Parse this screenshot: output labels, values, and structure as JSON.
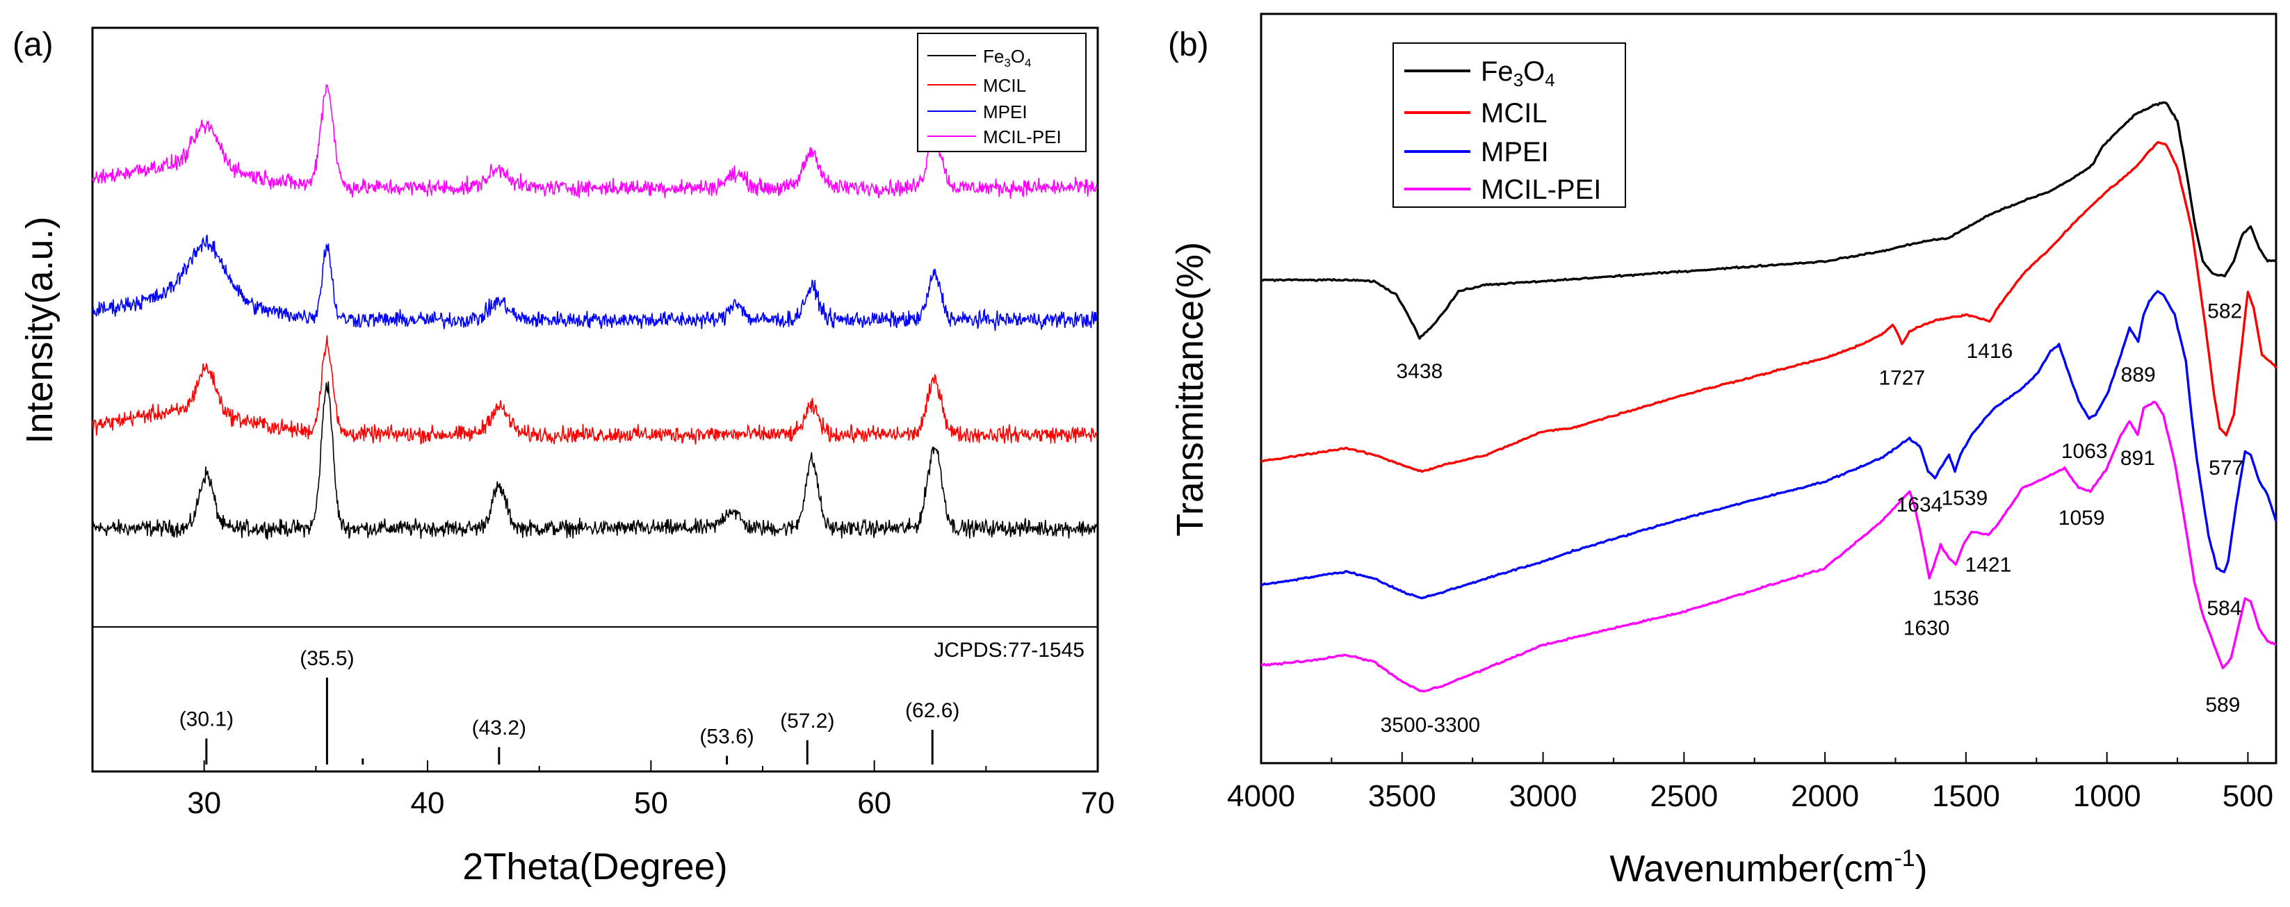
{
  "chart_data": [
    {
      "type": "line",
      "panel_label": "(a)",
      "xlabel": "2Theta(Degree)",
      "ylabel": "Intensity(a.u.)",
      "xlim": [
        25,
        70
      ],
      "xticks": [
        30,
        40,
        50,
        60,
        70
      ],
      "legend": {
        "position": "top-right",
        "entries": [
          {
            "text": "Fe",
            "sub": "3",
            "text2": "O",
            "sub2": "4",
            "color": "#000000"
          },
          {
            "text": "MCIL",
            "color": "#ff0000"
          },
          {
            "text": "MPEI",
            "color": "#0000ff"
          },
          {
            "text": "MCIL-PEI",
            "color": "#ff00ff"
          }
        ]
      },
      "series": [
        {
          "name": "Fe3O4",
          "color": "#000000",
          "baseline": 0.0,
          "peaks": [
            [
              30.1,
              0.6,
              0.45
            ],
            [
              35.5,
              1.6,
              0.35
            ],
            [
              43.2,
              0.45,
              0.45
            ],
            [
              53.6,
              0.2,
              0.5
            ],
            [
              57.2,
              0.75,
              0.4
            ],
            [
              62.7,
              0.9,
              0.45
            ]
          ]
        },
        {
          "name": "MCIL",
          "color": "#ff0000",
          "baseline": 1.5,
          "peaks": [
            [
              30.1,
              0.5,
              0.6
            ],
            [
              35.5,
              1.0,
              0.35
            ],
            [
              43.2,
              0.3,
              0.6
            ],
            [
              57.2,
              0.3,
              0.45
            ],
            [
              62.7,
              0.6,
              0.45
            ]
          ]
        },
        {
          "name": "MPEI",
          "color": "#0000ff",
          "baseline": 3.4,
          "peaks": [
            [
              30.1,
              0.6,
              1.2
            ],
            [
              35.5,
              0.8,
              0.3
            ],
            [
              43.2,
              0.2,
              0.6
            ],
            [
              53.8,
              0.2,
              0.4
            ],
            [
              57.2,
              0.35,
              0.45
            ],
            [
              62.7,
              0.5,
              0.4
            ]
          ]
        },
        {
          "name": "MCIL-PEI",
          "color": "#ff00ff",
          "baseline": 5.3,
          "peaks": [
            [
              30.1,
              0.45,
              0.8
            ],
            [
              35.5,
              1.1,
              0.4
            ],
            [
              43.2,
              0.2,
              0.7
            ],
            [
              53.8,
              0.15,
              0.6
            ],
            [
              57.2,
              0.4,
              0.5
            ],
            [
              62.7,
              0.55,
              0.45
            ]
          ]
        }
      ],
      "reference": {
        "label": "JCPDS:77-1545",
        "lines": [
          {
            "x": 30.1,
            "h": 0.3,
            "label": "(30.1)"
          },
          {
            "x": 35.5,
            "h": 1.0,
            "label": "(35.5)"
          },
          {
            "x": 37.1,
            "h": 0.07,
            "label": ""
          },
          {
            "x": 43.2,
            "h": 0.2,
            "label": "(43.2)"
          },
          {
            "x": 53.4,
            "h": 0.1,
            "label": "(53.6)"
          },
          {
            "x": 57.0,
            "h": 0.28,
            "label": "(57.2)"
          },
          {
            "x": 62.6,
            "h": 0.4,
            "label": "(62.6)"
          }
        ]
      }
    },
    {
      "type": "line",
      "panel_label": "(b)",
      "xlabel": "Wavenumber(cm",
      "xlabel_sup": "-1",
      "xlabel_end": ")",
      "ylabel": "Transmittance(%)",
      "xlim": [
        4000,
        400
      ],
      "ylim": [
        0,
        100
      ],
      "xticks": [
        4000,
        3500,
        3000,
        2500,
        2000,
        1500,
        1000,
        500
      ],
      "legend": {
        "position": "top-left",
        "entries": [
          {
            "text": "Fe",
            "sub": "3",
            "text2": "O",
            "sub2": "4",
            "color": "#000000"
          },
          {
            "text": "MCIL",
            "color": "#ff0000"
          },
          {
            "text": "MPEI",
            "color": "#0000ff"
          },
          {
            "text": "MCIL-PEI",
            "color": "#ff00ff"
          }
        ]
      },
      "series": [
        {
          "name": "Fe3O4",
          "color": "#000000",
          "points": [
            [
              4000,
              67.2
            ],
            [
              3700,
              67.2
            ],
            [
              3600,
              67
            ],
            [
              3520,
              65
            ],
            [
              3460,
              60.5
            ],
            [
              3438,
              58.5
            ],
            [
              3400,
              60
            ],
            [
              3350,
              62.5
            ],
            [
              3300,
              65.5
            ],
            [
              3200,
              66.5
            ],
            [
              3000,
              67
            ],
            [
              2500,
              68.5
            ],
            [
              2000,
              70
            ],
            [
              1800,
              71.5
            ],
            [
              1700,
              72.5
            ],
            [
              1650,
              73
            ],
            [
              1560,
              73.5
            ],
            [
              1500,
              75
            ],
            [
              1416,
              77
            ],
            [
              1300,
              79
            ],
            [
              1200,
              80.5
            ],
            [
              1100,
              83
            ],
            [
              1050,
              84.5
            ],
            [
              1020,
              87
            ],
            [
              950,
              90
            ],
            [
              900,
              92
            ],
            [
              830,
              93.5
            ],
            [
              790,
              93.8
            ],
            [
              750,
              91
            ],
            [
              720,
              84
            ],
            [
              690,
              76
            ],
            [
              660,
              70
            ],
            [
              620,
              68
            ],
            [
              582,
              67.8
            ],
            [
              550,
              70
            ],
            [
              520,
              74
            ],
            [
              490,
              75.2
            ],
            [
              460,
              72
            ],
            [
              430,
              70
            ],
            [
              400,
              70.2
            ]
          ]
        },
        {
          "name": "MCIL",
          "color": "#ff0000",
          "points": [
            [
              4000,
              40
            ],
            [
              3850,
              41
            ],
            [
              3700,
              42
            ],
            [
              3600,
              41
            ],
            [
              3500,
              39.5
            ],
            [
              3430,
              38.5
            ],
            [
              3350,
              39.5
            ],
            [
              3200,
              41
            ],
            [
              3000,
              44.5
            ],
            [
              2900,
              45
            ],
            [
              2500,
              50
            ],
            [
              2000,
              55.5
            ],
            [
              1900,
              57
            ],
            [
              1800,
              59
            ],
            [
              1760,
              60.5
            ],
            [
              1740,
              59
            ],
            [
              1727,
              57.5
            ],
            [
              1700,
              59.5
            ],
            [
              1650,
              60.5
            ],
            [
              1600,
              61.2
            ],
            [
              1500,
              62
            ],
            [
              1450,
              61.5
            ],
            [
              1416,
              61
            ],
            [
              1380,
              63.5
            ],
            [
              1300,
              68
            ],
            [
              1200,
              72
            ],
            [
              1100,
              76.5
            ],
            [
              1000,
              80.5
            ],
            [
              900,
              84
            ],
            [
              850,
              86.5
            ],
            [
              820,
              87.8
            ],
            [
              790,
              87.5
            ],
            [
              750,
              84
            ],
            [
              700,
              75
            ],
            [
              650,
              60
            ],
            [
              620,
              50
            ],
            [
              600,
              45
            ],
            [
              577,
              44
            ],
            [
              550,
              47
            ],
            [
              520,
              58
            ],
            [
              500,
              65.5
            ],
            [
              480,
              63
            ],
            [
              450,
              56
            ],
            [
              420,
              55
            ],
            [
              400,
              54
            ]
          ]
        },
        {
          "name": "MPEI",
          "color": "#0000ff",
          "points": [
            [
              4000,
              21.5
            ],
            [
              3850,
              22.5
            ],
            [
              3700,
              23.5
            ],
            [
              3600,
              22.5
            ],
            [
              3500,
              20.5
            ],
            [
              3430,
              19.5
            ],
            [
              3350,
              20.5
            ],
            [
              3200,
              22.5
            ],
            [
              3000,
              25
            ],
            [
              2900,
              26.5
            ],
            [
              2500,
              31.5
            ],
            [
              2000,
              37
            ],
            [
              1800,
              40.5
            ],
            [
              1700,
              43.5
            ],
            [
              1660,
              42
            ],
            [
              1634,
              38.5
            ],
            [
              1610,
              37.5
            ],
            [
              1590,
              39
            ],
            [
              1560,
              41
            ],
            [
              1539,
              38.5
            ],
            [
              1520,
              41
            ],
            [
              1480,
              44
            ],
            [
              1400,
              48
            ],
            [
              1300,
              51
            ],
            [
              1250,
              53
            ],
            [
              1200,
              56.5
            ],
            [
              1170,
              57.5
            ],
            [
              1150,
              55
            ],
            [
              1100,
              49
            ],
            [
              1063,
              46.5
            ],
            [
              1040,
              47
            ],
            [
              1000,
              50
            ],
            [
              950,
              56
            ],
            [
              920,
              60
            ],
            [
              889,
              58
            ],
            [
              870,
              62
            ],
            [
              850,
              64
            ],
            [
              820,
              65.5
            ],
            [
              800,
              65
            ],
            [
              760,
              62
            ],
            [
              720,
              55
            ],
            [
              700,
              47
            ],
            [
              680,
              40
            ],
            [
              640,
              29
            ],
            [
              610,
              24
            ],
            [
              584,
              23.5
            ],
            [
              570,
              25
            ],
            [
              540,
              34
            ],
            [
              510,
              41.5
            ],
            [
              490,
              41
            ],
            [
              460,
              37
            ],
            [
              430,
              35
            ],
            [
              400,
              31
            ]
          ]
        },
        {
          "name": "MCIL-PEI",
          "color": "#ff00ff",
          "points": [
            [
              4000,
              9.5
            ],
            [
              3850,
              10
            ],
            [
              3700,
              11
            ],
            [
              3600,
              10
            ],
            [
              3500,
              7
            ],
            [
              3430,
              5.5
            ],
            [
              3350,
              6.5
            ],
            [
              3200,
              9
            ],
            [
              3000,
              12.5
            ],
            [
              2900,
              13.5
            ],
            [
              2500,
              17.5
            ],
            [
              2000,
              24
            ],
            [
              1800,
              31
            ],
            [
              1700,
              35.5
            ],
            [
              1680,
              33
            ],
            [
              1650,
              27
            ],
            [
              1630,
              22.5
            ],
            [
              1610,
              25
            ],
            [
              1590,
              27.5
            ],
            [
              1560,
              25.5
            ],
            [
              1536,
              24.5
            ],
            [
              1510,
              27.5
            ],
            [
              1480,
              29.5
            ],
            [
              1421,
              29
            ],
            [
              1380,
              31
            ],
            [
              1300,
              36
            ],
            [
              1200,
              38
            ],
            [
              1150,
              39
            ],
            [
              1100,
              36
            ],
            [
              1059,
              35.5
            ],
            [
              1000,
              39
            ],
            [
              950,
              44
            ],
            [
              920,
              46
            ],
            [
              891,
              44
            ],
            [
              870,
              48
            ],
            [
              850,
              48.5
            ],
            [
              830,
              49
            ],
            [
              800,
              47
            ],
            [
              760,
              40
            ],
            [
              720,
              30
            ],
            [
              690,
              22
            ],
            [
              660,
              17
            ],
            [
              620,
              12.5
            ],
            [
              589,
              9
            ],
            [
              560,
              10.5
            ],
            [
              530,
              16
            ],
            [
              510,
              19.5
            ],
            [
              490,
              19
            ],
            [
              460,
              15
            ],
            [
              430,
              13
            ],
            [
              400,
              12.5
            ]
          ]
        }
      ],
      "annotations": [
        {
          "text": "3438",
          "x": 3438,
          "y": 52.5
        },
        {
          "text": "1727",
          "x": 1727,
          "y": 51.5
        },
        {
          "text": "1416",
          "x": 1416,
          "y": 55.5
        },
        {
          "text": "582",
          "x": 582,
          "y": 61.5
        },
        {
          "text": "1063",
          "x": 1080,
          "y": 40.5
        },
        {
          "text": "889",
          "x": 889,
          "y": 52
        },
        {
          "text": "577",
          "x": 577,
          "y": 38
        },
        {
          "text": "1634",
          "x": 1665,
          "y": 32.5
        },
        {
          "text": "1539",
          "x": 1505,
          "y": 33.5
        },
        {
          "text": "891",
          "x": 891,
          "y": 39.5
        },
        {
          "text": "1059",
          "x": 1090,
          "y": 30.5
        },
        {
          "text": "584",
          "x": 584,
          "y": 17
        },
        {
          "text": "1421",
          "x": 1421,
          "y": 23.5
        },
        {
          "text": "1536",
          "x": 1536,
          "y": 18.5
        },
        {
          "text": "1630",
          "x": 1640,
          "y": 14
        },
        {
          "text": "589",
          "x": 589,
          "y": 2.5
        },
        {
          "text": "3500-3300",
          "x": 3400,
          "y": -0.5
        }
      ]
    }
  ]
}
